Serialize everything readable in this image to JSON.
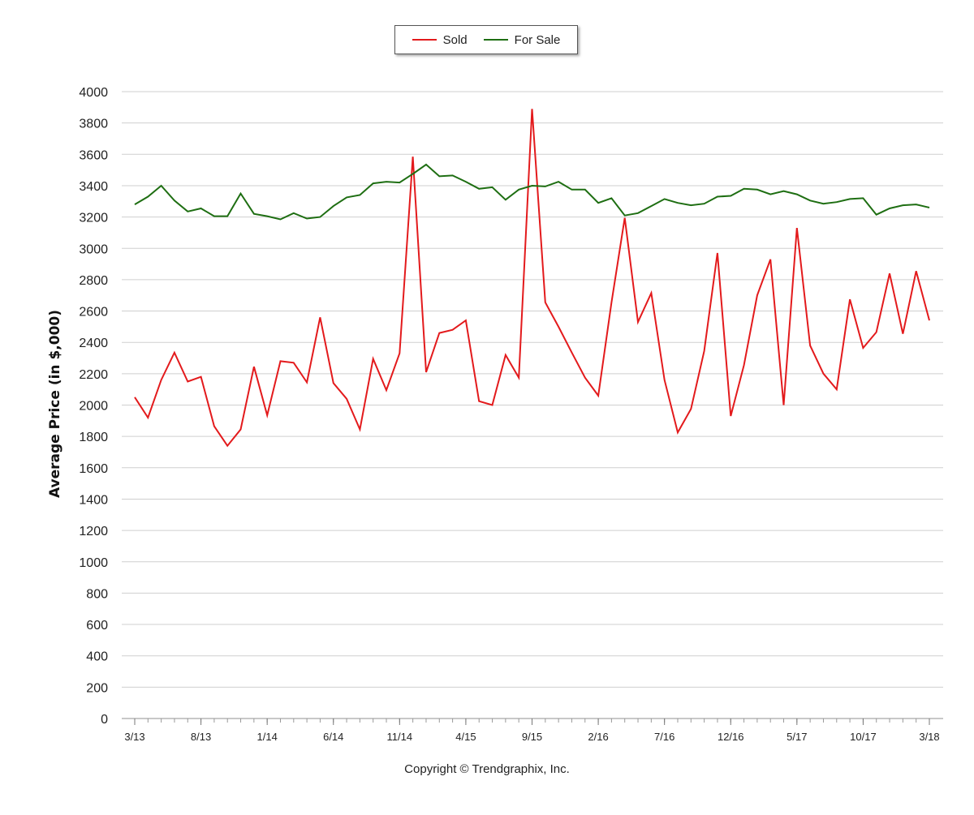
{
  "chart_data": {
    "type": "line",
    "ylabel": "Average Price (in $,000)",
    "xlabel": "",
    "ylim": [
      0,
      4000
    ],
    "yticks": [
      0,
      200,
      400,
      600,
      800,
      1000,
      1200,
      1400,
      1600,
      1800,
      2000,
      2200,
      2400,
      2600,
      2800,
      3000,
      3200,
      3400,
      3600,
      3800,
      4000
    ],
    "grid": true,
    "legend": "top-center",
    "x": [
      "3/13",
      "4/13",
      "5/13",
      "6/13",
      "7/13",
      "8/13",
      "9/13",
      "10/13",
      "11/13",
      "12/13",
      "1/14",
      "2/14",
      "3/14",
      "4/14",
      "5/14",
      "6/14",
      "7/14",
      "8/14",
      "9/14",
      "10/14",
      "11/14",
      "12/14",
      "1/15",
      "2/15",
      "3/15",
      "4/15",
      "5/15",
      "6/15",
      "7/15",
      "8/15",
      "9/15",
      "10/15",
      "11/15",
      "12/15",
      "1/16",
      "2/16",
      "3/16",
      "4/16",
      "5/16",
      "6/16",
      "7/16",
      "8/16",
      "9/16",
      "10/16",
      "11/16",
      "12/16",
      "1/17",
      "2/17",
      "3/17",
      "4/17",
      "5/17",
      "6/17",
      "7/17",
      "8/17",
      "9/17",
      "10/17",
      "11/17",
      "12/17",
      "1/18",
      "2/18",
      "3/18"
    ],
    "x_tick_labels": [
      "3/13",
      "8/13",
      "1/14",
      "6/14",
      "11/14",
      "4/15",
      "9/15",
      "2/16",
      "7/16",
      "12/16",
      "5/17",
      "10/17",
      "3/18"
    ],
    "series": [
      {
        "name": "Sold",
        "color": "#e31a1c",
        "values": [
          2050,
          1920,
          2160,
          2335,
          2150,
          2180,
          1865,
          1740,
          1845,
          2245,
          1935,
          2280,
          2270,
          2145,
          2560,
          2140,
          2040,
          1845,
          2295,
          2095,
          2330,
          3585,
          2210,
          2460,
          2480,
          2540,
          2025,
          2000,
          2320,
          2175,
          3890,
          2655,
          2500,
          2335,
          2175,
          2060,
          2655,
          3195,
          2530,
          2715,
          2160,
          1825,
          1975,
          2345,
          2970,
          1930,
          2255,
          2700,
          2930,
          2000,
          3130,
          2380,
          2200,
          2100,
          2675,
          2365,
          2465,
          2840,
          2455,
          2855,
          2540
        ]
      },
      {
        "name": "For Sale",
        "color": "#1e6e12",
        "values": [
          3280,
          3330,
          3400,
          3305,
          3235,
          3255,
          3205,
          3205,
          3350,
          3220,
          3205,
          3185,
          3225,
          3190,
          3200,
          3270,
          3325,
          3340,
          3415,
          3425,
          3420,
          3475,
          3535,
          3460,
          3465,
          3425,
          3380,
          3390,
          3310,
          3375,
          3400,
          3395,
          3425,
          3375,
          3375,
          3290,
          3320,
          3210,
          3225,
          3270,
          3315,
          3290,
          3275,
          3285,
          3330,
          3335,
          3380,
          3375,
          3345,
          3365,
          3345,
          3305,
          3285,
          3295,
          3315,
          3320,
          3215,
          3255,
          3275,
          3280,
          3260
        ]
      }
    ]
  },
  "footer": {
    "copyright": "Copyright © Trendgraphix, Inc."
  }
}
